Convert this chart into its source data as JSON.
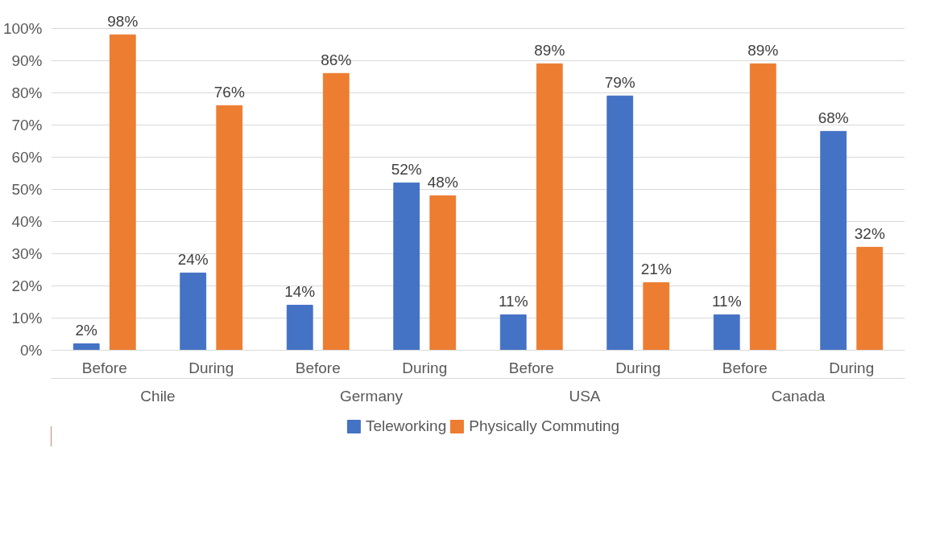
{
  "chart_data": {
    "type": "bar",
    "categories": [
      "Before",
      "During",
      "Before",
      "During",
      "Before",
      "During",
      "Before",
      "During"
    ],
    "annotations": [
      "Chile",
      "Germany",
      "USA",
      "Canada"
    ],
    "series": [
      {
        "name": "Teleworking",
        "color": "#4472c4",
        "values": [
          2,
          24,
          14,
          52,
          11,
          79,
          11,
          68
        ],
        "value_labels": [
          "2%",
          "24%",
          "14%",
          "52%",
          "11%",
          "79%",
          "11%",
          "68%"
        ]
      },
      {
        "name": "Physically Commuting",
        "color": "#ed7d31",
        "values": [
          98,
          76,
          86,
          48,
          89,
          21,
          89,
          32
        ],
        "value_labels": [
          "98%",
          "76%",
          "86%",
          "48%",
          "89%",
          "21%",
          "89%",
          "32%"
        ]
      }
    ],
    "ylim": [
      0,
      100
    ],
    "yticks": [
      {
        "value": 0,
        "label": "0%"
      },
      {
        "value": 10,
        "label": "10%"
      },
      {
        "value": 20,
        "label": "20%"
      },
      {
        "value": 30,
        "label": "30%"
      },
      {
        "value": 40,
        "label": "40%"
      },
      {
        "value": 50,
        "label": "50%"
      },
      {
        "value": 60,
        "label": "60%"
      },
      {
        "value": 70,
        "label": "70%"
      },
      {
        "value": 80,
        "label": "80%"
      },
      {
        "value": 90,
        "label": "90%"
      },
      {
        "value": 100,
        "label": "100%"
      }
    ],
    "grid": "y",
    "legend": "bottom"
  }
}
